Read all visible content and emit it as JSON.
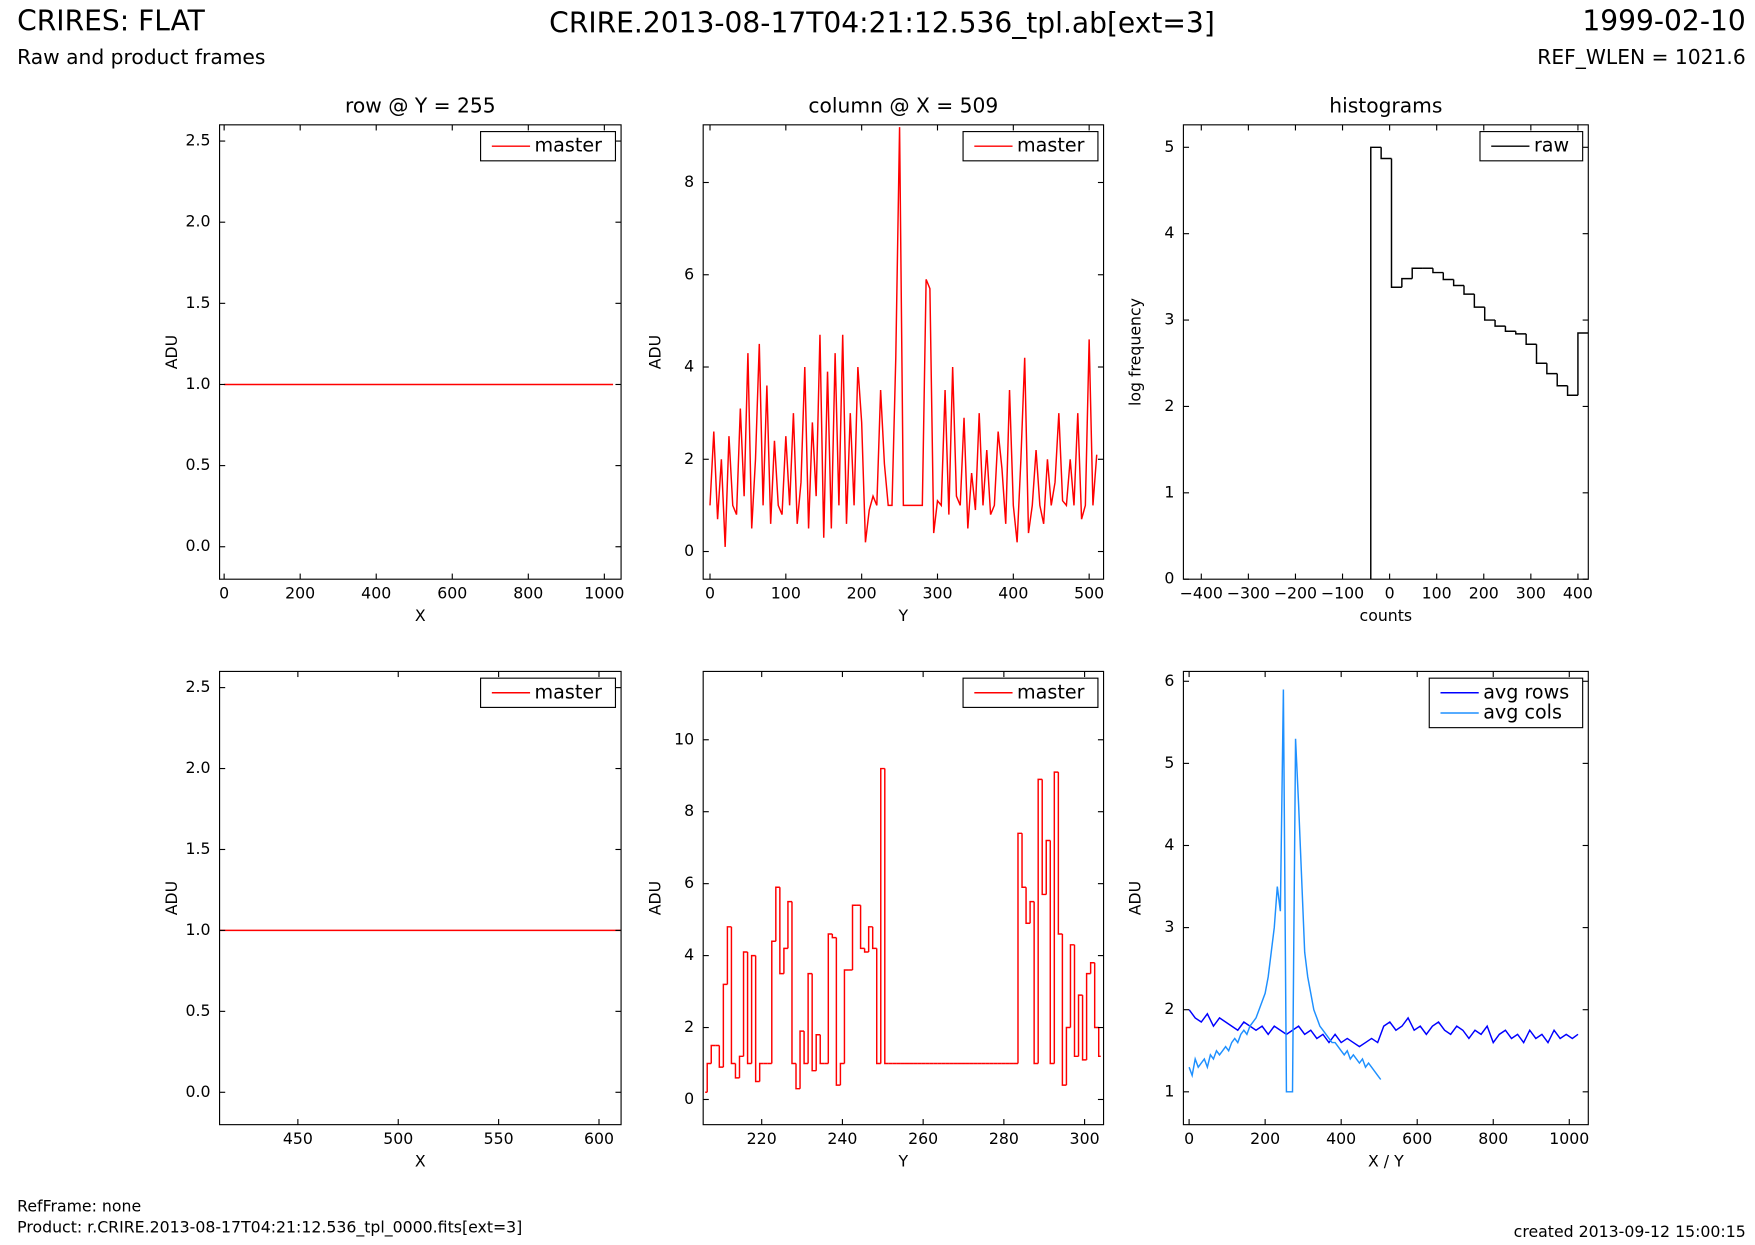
{
  "header": {
    "instrument": "CRIRES: FLAT",
    "subtitle": "Raw and product frames",
    "file": "CRIRE.2013-08-17T04:21:12.536_tpl.ab[ext=3]",
    "date": "1999-02-10",
    "ref_wlen": "REF_WLEN = 1021.6"
  },
  "footer": {
    "ref_frame": "RefFrame: none",
    "product": "Product: r.CRIRE.2013-08-17T04:21:12.536_tpl_0000.fits[ext=3]",
    "created": "created 2013-09-12 15:00:15"
  },
  "chart_data": [
    {
      "type": "line",
      "title": "row @ Y = 255",
      "x_label": "X",
      "y_label": "ADU",
      "legend": "upper right",
      "xlim": [
        -12,
        1044
      ],
      "xticks": [
        0,
        200,
        400,
        600,
        800,
        1000
      ],
      "ylim": [
        -0.2,
        2.6
      ],
      "yticks": [
        {
          "value": 0,
          "label": "0.0"
        },
        {
          "value": 0.5,
          "label": "0.5"
        },
        {
          "value": 1,
          "label": "1.0"
        },
        {
          "value": 1.5,
          "label": "1.5"
        },
        {
          "value": 2,
          "label": "2.0"
        },
        {
          "value": 2.5,
          "label": "2.5"
        }
      ],
      "series": [
        {
          "name": "master",
          "color": "#ff0000",
          "x": [
            0,
            1023
          ],
          "values": [
            1,
            1
          ]
        }
      ]
    },
    {
      "type": "line",
      "title": "column @ X = 509",
      "x_label": "Y",
      "y_label": "ADU",
      "legend": "upper right",
      "xlim": [
        -9,
        519
      ],
      "xticks": [
        0,
        100,
        200,
        300,
        400,
        500
      ],
      "ylim": [
        -0.6,
        9.25
      ],
      "yticks": [
        0,
        2,
        4,
        6,
        8
      ],
      "series": [
        {
          "name": "master",
          "color": "#ff0000",
          "x": [
            0,
            5,
            10,
            15,
            20,
            25,
            30,
            35,
            40,
            45,
            50,
            55,
            60,
            65,
            70,
            75,
            80,
            85,
            90,
            95,
            100,
            105,
            110,
            115,
            120,
            125,
            130,
            135,
            140,
            145,
            150,
            155,
            160,
            165,
            170,
            175,
            180,
            185,
            190,
            195,
            200,
            205,
            210,
            215,
            220,
            225,
            230,
            235,
            240,
            245,
            250,
            255,
            260,
            265,
            270,
            275,
            280,
            285,
            290,
            295,
            300,
            305,
            310,
            315,
            320,
            325,
            330,
            335,
            340,
            345,
            350,
            355,
            360,
            365,
            370,
            375,
            380,
            385,
            390,
            395,
            400,
            405,
            410,
            415,
            420,
            425,
            430,
            435,
            440,
            445,
            450,
            455,
            460,
            465,
            470,
            475,
            480,
            485,
            490,
            495,
            500,
            505,
            510
          ],
          "values": [
            1.0,
            2.6,
            0.7,
            2.0,
            0.1,
            2.5,
            1.0,
            0.8,
            3.1,
            1.2,
            4.3,
            0.5,
            2.0,
            4.5,
            1.0,
            3.6,
            0.6,
            2.4,
            1.0,
            0.8,
            2.5,
            1.0,
            3.0,
            0.6,
            1.5,
            4.0,
            0.5,
            2.8,
            1.2,
            4.7,
            0.3,
            3.9,
            0.5,
            4.3,
            1.0,
            4.7,
            0.6,
            3.0,
            1.0,
            4.0,
            2.8,
            0.2,
            0.9,
            1.2,
            1.0,
            3.5,
            1.9,
            1.0,
            1.0,
            4.2,
            9.2,
            1.0,
            1.0,
            1.0,
            1.0,
            1.0,
            1.0,
            5.9,
            5.7,
            0.4,
            1.1,
            1.0,
            3.5,
            0.8,
            4.0,
            1.2,
            1.0,
            2.9,
            0.5,
            1.7,
            0.9,
            3.0,
            1.0,
            2.2,
            0.8,
            1.0,
            2.6,
            1.8,
            0.6,
            3.5,
            1.0,
            0.2,
            2.0,
            4.2,
            0.4,
            1.0,
            2.2,
            1.0,
            0.6,
            2.0,
            1.0,
            1.5,
            3.0,
            1.1,
            1.0,
            2.0,
            1.0,
            3.0,
            0.7,
            1.0,
            4.6,
            1.0,
            2.1
          ]
        }
      ]
    },
    {
      "type": "histogram",
      "title": "histograms",
      "x_label": "counts",
      "y_label": "log frequency",
      "legend": "upper right",
      "xlim": [
        -438,
        422
      ],
      "xticks": [
        {
          "value": -400,
          "label": "−400"
        },
        {
          "value": -300,
          "label": "−300"
        },
        {
          "value": -200,
          "label": "−200"
        },
        {
          "value": -100,
          "label": "−100"
        },
        0,
        100,
        200,
        300,
        400
      ],
      "ylim": [
        0,
        5.26
      ],
      "yticks": [
        0,
        1,
        2,
        3,
        4,
        5
      ],
      "series": [
        {
          "name": "raw",
          "color": "#000000",
          "bins": [
            -40,
            -18,
            4,
            26,
            48,
            70,
            92,
            114,
            136,
            158,
            180,
            202,
            224,
            246,
            268,
            290,
            312,
            334,
            356,
            378,
            400,
            422
          ],
          "values": [
            5.0,
            4.87,
            3.38,
            3.48,
            3.6,
            3.6,
            3.55,
            3.47,
            3.4,
            3.3,
            3.15,
            3.0,
            2.93,
            2.87,
            2.84,
            2.72,
            2.5,
            2.38,
            2.24,
            2.13,
            2.85
          ]
        }
      ]
    },
    {
      "type": "line",
      "x_label": "X",
      "y_label": "ADU",
      "legend": "upper right",
      "xlim": [
        411,
        611
      ],
      "xticks": [
        450,
        500,
        550,
        600
      ],
      "ylim": [
        -0.2,
        2.6
      ],
      "yticks": [
        {
          "value": 0,
          "label": "0.0"
        },
        {
          "value": 0.5,
          "label": "0.5"
        },
        {
          "value": 1,
          "label": "1.0"
        },
        {
          "value": 1.5,
          "label": "1.5"
        },
        {
          "value": 2,
          "label": "2.0"
        },
        {
          "value": 2.5,
          "label": "2.5"
        }
      ],
      "series": [
        {
          "name": "master",
          "color": "#ff0000",
          "x": [
            411,
            611
          ],
          "values": [
            1,
            1
          ]
        }
      ]
    },
    {
      "type": "line",
      "step": "mid",
      "x_label": "Y",
      "y_label": "ADU",
      "legend": "upper right",
      "xlim": [
        205.5,
        304.7
      ],
      "xticks": [
        220,
        240,
        260,
        280,
        300
      ],
      "ylim": [
        -0.7,
        11.9
      ],
      "yticks": [
        0,
        2,
        4,
        6,
        8,
        10
      ],
      "series": [
        {
          "name": "master",
          "color": "#ff0000",
          "x": [
            206,
            207,
            208,
            209,
            210,
            211,
            212,
            213,
            214,
            215,
            216,
            217,
            218,
            219,
            220,
            221,
            222,
            223,
            224,
            225,
            226,
            227,
            228,
            229,
            230,
            231,
            232,
            233,
            234,
            235,
            236,
            237,
            238,
            239,
            240,
            241,
            242,
            243,
            244,
            245,
            246,
            247,
            248,
            249,
            250,
            251,
            252,
            253,
            254,
            255,
            256,
            257,
            258,
            259,
            260,
            261,
            262,
            263,
            264,
            265,
            266,
            267,
            268,
            269,
            270,
            271,
            272,
            273,
            274,
            275,
            276,
            277,
            278,
            279,
            280,
            281,
            282,
            283,
            284,
            285,
            286,
            287,
            288,
            289,
            290,
            291,
            292,
            293,
            294,
            295,
            296,
            297,
            298,
            299,
            300,
            301,
            302,
            303,
            304
          ],
          "values": [
            0.2,
            1.0,
            1.5,
            1.5,
            0.9,
            3.2,
            4.8,
            1.0,
            0.6,
            1.2,
            4.1,
            1.0,
            4.0,
            0.5,
            1.0,
            1.0,
            1.0,
            4.4,
            5.9,
            3.5,
            4.2,
            5.5,
            1.0,
            0.3,
            1.9,
            1.0,
            3.5,
            0.8,
            1.8,
            1.0,
            1.0,
            4.6,
            4.5,
            0.4,
            1.0,
            3.6,
            3.6,
            5.4,
            5.4,
            4.2,
            4.1,
            4.8,
            4.2,
            1.0,
            9.2,
            1.0,
            1.0,
            1.0,
            1.0,
            1.0,
            1.0,
            1.0,
            1.0,
            1.0,
            1.0,
            1.0,
            1.0,
            1.0,
            1.0,
            1.0,
            1.0,
            1.0,
            1.0,
            1.0,
            1.0,
            1.0,
            1.0,
            1.0,
            1.0,
            1.0,
            1.0,
            1.0,
            1.0,
            1.0,
            1.0,
            1.0,
            1.0,
            1.0,
            7.4,
            5.9,
            4.9,
            5.5,
            1.0,
            8.9,
            5.7,
            7.2,
            1.0,
            9.1,
            4.6,
            0.4,
            2.0,
            4.3,
            1.2,
            2.9,
            1.1,
            3.5,
            3.8,
            2.0,
            1.2
          ]
        }
      ]
    },
    {
      "type": "line",
      "x_label": "X / Y",
      "y_label": "ADU",
      "legend": "upper right",
      "xlim": [
        -15,
        1050
      ],
      "xticks": [
        0,
        200,
        400,
        600,
        800,
        1000
      ],
      "ylim": [
        0.6,
        6.12
      ],
      "yticks": [
        1,
        2,
        3,
        4,
        5,
        6
      ],
      "series": [
        {
          "name": "avg rows",
          "color": "#0000ff",
          "x": [
            0,
            16,
            32,
            48,
            64,
            80,
            96,
            112,
            128,
            144,
            160,
            176,
            192,
            208,
            224,
            240,
            256,
            272,
            288,
            304,
            320,
            336,
            352,
            368,
            384,
            400,
            416,
            432,
            448,
            464,
            480,
            496,
            512,
            528,
            544,
            560,
            576,
            592,
            608,
            624,
            640,
            656,
            672,
            688,
            704,
            720,
            736,
            752,
            768,
            784,
            800,
            816,
            832,
            848,
            864,
            880,
            896,
            912,
            928,
            944,
            960,
            976,
            992,
            1008,
            1023
          ],
          "values": [
            2.0,
            1.9,
            1.85,
            1.95,
            1.8,
            1.9,
            1.85,
            1.8,
            1.75,
            1.85,
            1.8,
            1.75,
            1.8,
            1.7,
            1.8,
            1.75,
            1.7,
            1.75,
            1.8,
            1.7,
            1.75,
            1.65,
            1.7,
            1.6,
            1.7,
            1.6,
            1.65,
            1.6,
            1.55,
            1.6,
            1.65,
            1.6,
            1.8,
            1.85,
            1.75,
            1.8,
            1.9,
            1.75,
            1.8,
            1.7,
            1.8,
            1.85,
            1.75,
            1.7,
            1.8,
            1.75,
            1.65,
            1.75,
            1.7,
            1.8,
            1.6,
            1.7,
            1.75,
            1.65,
            1.7,
            1.6,
            1.75,
            1.65,
            1.7,
            1.6,
            1.75,
            1.65,
            1.7,
            1.65,
            1.7
          ]
        },
        {
          "name": "avg cols",
          "color": "#1e90ff",
          "x": [
            0,
            8,
            16,
            24,
            32,
            40,
            48,
            56,
            64,
            72,
            80,
            88,
            96,
            104,
            112,
            120,
            128,
            136,
            144,
            152,
            160,
            168,
            176,
            184,
            192,
            200,
            208,
            216,
            224,
            232,
            240,
            248,
            256,
            264,
            272,
            280,
            288,
            296,
            304,
            312,
            320,
            328,
            336,
            344,
            352,
            360,
            368,
            376,
            384,
            392,
            400,
            408,
            416,
            424,
            432,
            440,
            448,
            456,
            464,
            472,
            480,
            488,
            496,
            504
          ],
          "values": [
            1.3,
            1.2,
            1.4,
            1.3,
            1.35,
            1.4,
            1.3,
            1.45,
            1.4,
            1.5,
            1.45,
            1.5,
            1.55,
            1.5,
            1.6,
            1.65,
            1.6,
            1.7,
            1.75,
            1.7,
            1.8,
            1.85,
            1.9,
            2.0,
            2.1,
            2.2,
            2.4,
            2.7,
            3.0,
            3.5,
            3.2,
            5.9,
            1.0,
            1.0,
            1.0,
            5.3,
            4.5,
            3.6,
            2.7,
            2.4,
            2.2,
            2.0,
            1.9,
            1.8,
            1.75,
            1.7,
            1.65,
            1.6,
            1.6,
            1.55,
            1.5,
            1.45,
            1.5,
            1.4,
            1.45,
            1.4,
            1.35,
            1.4,
            1.3,
            1.35,
            1.3,
            1.25,
            1.2,
            1.15
          ]
        }
      ]
    }
  ]
}
